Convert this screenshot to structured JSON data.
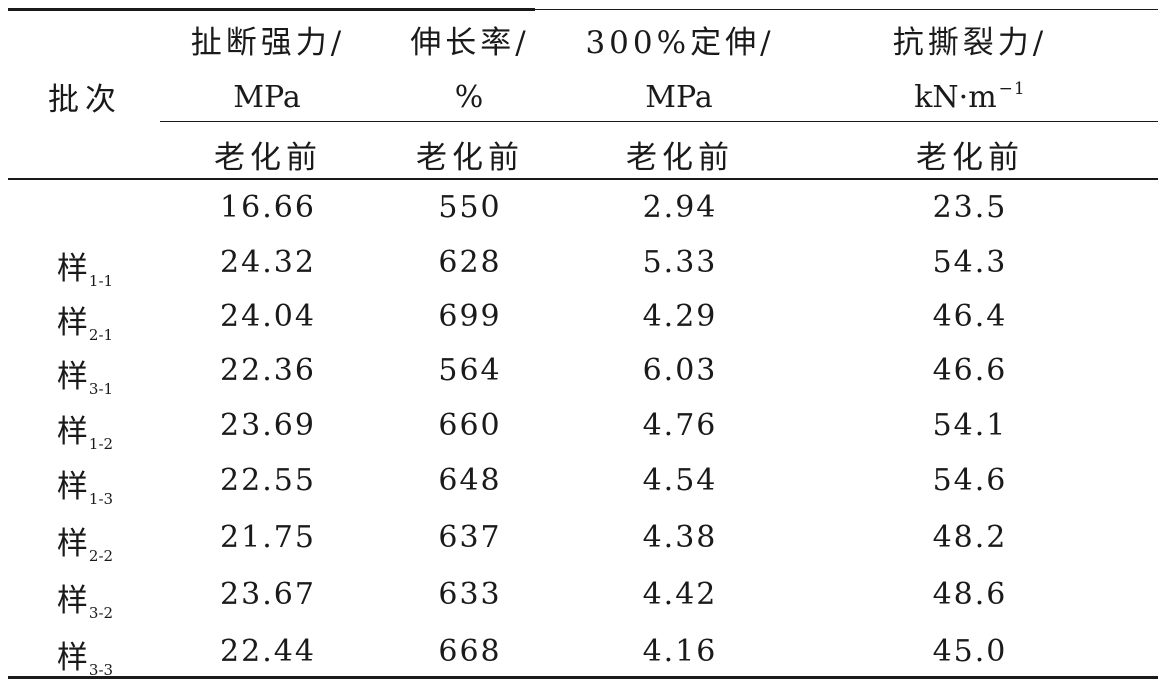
{
  "table": {
    "batch_header": "批次",
    "columns": [
      {
        "name": "扯断强力/",
        "unit": "MPa",
        "unit_sup": "",
        "sub": "老化前"
      },
      {
        "name": "伸长率/",
        "unit": "%",
        "unit_sup": "",
        "sub": "老化前"
      },
      {
        "name": "300%定伸/",
        "unit": "MPa",
        "unit_sup": "",
        "sub": "老化前"
      },
      {
        "name": "抗撕裂力/",
        "unit": "kN·m",
        "unit_sup": "−1",
        "sub": "老化前"
      }
    ],
    "rows": [
      {
        "batch": "",
        "batch_sub": "",
        "values": [
          "16.66",
          "550",
          "2.94",
          "23.5"
        ]
      },
      {
        "batch": "样",
        "batch_sub": "1-1",
        "values": [
          "24.32",
          "628",
          "5.33",
          "54.3"
        ]
      },
      {
        "batch": "样",
        "batch_sub": "2-1",
        "values": [
          "24.04",
          "699",
          "4.29",
          "46.4"
        ]
      },
      {
        "batch": "样",
        "batch_sub": "3-1",
        "values": [
          "22.36",
          "564",
          "6.03",
          "46.6"
        ]
      },
      {
        "batch": "样",
        "batch_sub": "1-2",
        "values": [
          "23.69",
          "660",
          "4.76",
          "54.1"
        ]
      },
      {
        "batch": "样",
        "batch_sub": "1-3",
        "values": [
          "22.55",
          "648",
          "4.54",
          "54.6"
        ]
      },
      {
        "batch": "样",
        "batch_sub": "2-2",
        "values": [
          "21.75",
          "637",
          "4.38",
          "48.2"
        ]
      },
      {
        "batch": "样",
        "batch_sub": "3-2",
        "values": [
          "23.67",
          "633",
          "4.42",
          "48.6"
        ]
      },
      {
        "batch": "样",
        "batch_sub": "3-3",
        "values": [
          "22.44",
          "668",
          "4.16",
          "45.0"
        ]
      }
    ]
  }
}
